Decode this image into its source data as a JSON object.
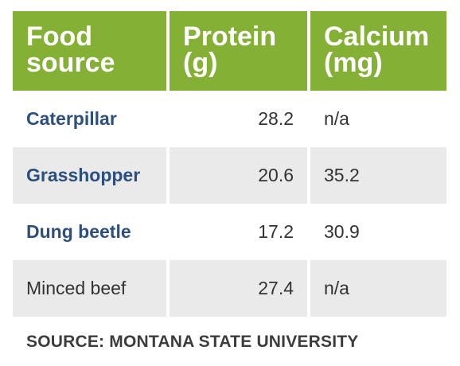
{
  "table": {
    "headers": [
      "Food\nsource",
      "Protein\n(g)",
      "Calcium\n(mg)"
    ],
    "rows": [
      {
        "food": "Caterpillar",
        "protein": "28.2",
        "calcium": "n/a"
      },
      {
        "food": "Grasshopper",
        "protein": "20.6",
        "calcium": "35.2"
      },
      {
        "food": "Dung beetle",
        "protein": "17.2",
        "calcium": "30.9"
      },
      {
        "food": "Minced beef",
        "protein": "27.4",
        "calcium": "n/a"
      }
    ]
  },
  "source": "SOURCE: MONTANA STATE UNIVERSITY",
  "colors": {
    "header_bg": "#84b135",
    "insect_text": "#2c4f7f",
    "stripe_bg": "#eaeaea"
  }
}
